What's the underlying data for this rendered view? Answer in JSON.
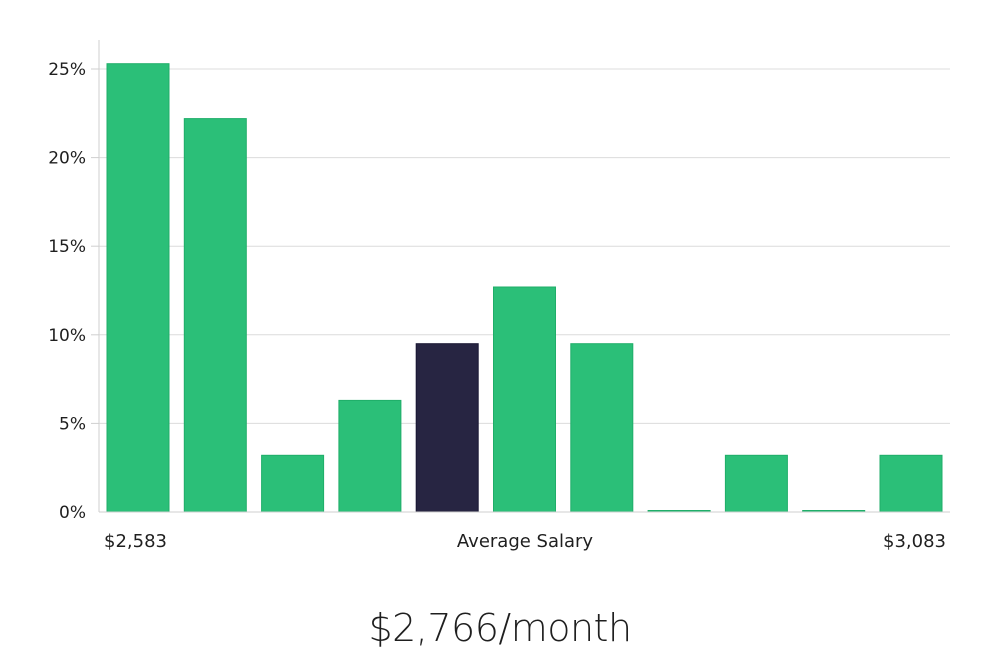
{
  "chart_data": {
    "type": "bar",
    "title": "",
    "xlabel": "",
    "ylabel": "",
    "x_ticks": {
      "left": "$2,583",
      "center": "Average Salary",
      "right": "$3,083"
    },
    "y_ticks": [
      "0%",
      "5%",
      "10%",
      "15%",
      "20%",
      "25%"
    ],
    "ylim": [
      0,
      26.5
    ],
    "values": [
      25.3,
      22.2,
      3.2,
      6.3,
      9.5,
      12.7,
      9.5,
      0,
      3.2,
      0,
      3.2
    ],
    "highlight_index": 4,
    "grid": true,
    "colors": {
      "bar": "#2bbf78",
      "bar_edge": "#1fae69",
      "highlight": "#272542",
      "highlight_edge": "#181633"
    }
  },
  "summary": {
    "average_salary": "$2,766/month"
  }
}
